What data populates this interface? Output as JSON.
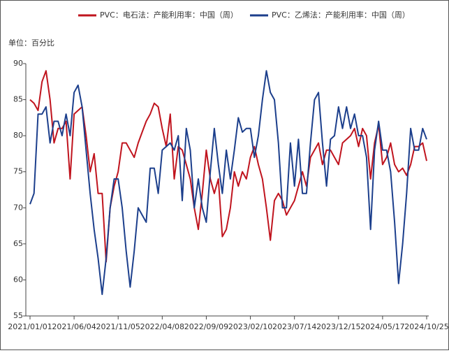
{
  "chart_data": {
    "type": "line",
    "unit_label": "单位：百分比",
    "categories": [
      "2021/01/01",
      null,
      null,
      null,
      null,
      null,
      null,
      null,
      null,
      null,
      null,
      "2021/06/04",
      null,
      null,
      null,
      null,
      null,
      null,
      null,
      null,
      null,
      null,
      "2021/11/05",
      null,
      null,
      null,
      null,
      null,
      null,
      null,
      null,
      null,
      null,
      "2022/04/08",
      null,
      null,
      null,
      null,
      null,
      null,
      null,
      null,
      null,
      null,
      "2022/09/09",
      null,
      null,
      null,
      null,
      null,
      null,
      null,
      null,
      null,
      null,
      "2023/02/10",
      null,
      null,
      null,
      null,
      null,
      null,
      null,
      null,
      null,
      null,
      "2023/07/14",
      null,
      null,
      null,
      null,
      null,
      null,
      null,
      null,
      null,
      null,
      "2023/12/15",
      null,
      null,
      null,
      null,
      null,
      null,
      null,
      null,
      null,
      null,
      "2024/05/17",
      null,
      null,
      null,
      null,
      null,
      null,
      null,
      null,
      null,
      null,
      "2024/10/25"
    ],
    "series": [
      {
        "name": "PVC：电石法：产能利用率：中国（周）",
        "color": "#c0141e",
        "values": [
          85,
          84.5,
          83.5,
          87.5,
          89,
          85,
          79,
          81,
          81,
          82,
          74,
          83,
          83.5,
          84,
          80,
          75,
          77.5,
          72,
          72,
          62.5,
          70,
          73,
          75,
          79,
          79,
          78,
          77,
          79,
          80.5,
          82,
          83,
          84.5,
          84,
          81,
          78.5,
          83,
          74,
          78.5,
          78,
          76,
          74,
          70,
          67,
          72,
          78,
          74,
          72,
          74,
          66,
          67,
          70,
          75,
          73,
          75,
          74,
          77,
          78.5,
          76,
          74,
          70,
          65.5,
          71,
          72,
          71,
          69,
          70,
          71,
          73,
          75,
          73,
          77,
          78,
          79,
          76,
          78,
          78,
          77,
          76,
          79,
          79.5,
          80,
          81,
          78.5,
          81,
          80,
          74,
          79,
          81.5,
          76,
          77,
          79,
          76,
          75,
          75.5,
          74.5,
          76,
          78.5,
          78.5,
          79,
          76.5
        ]
      },
      {
        "name": "PVC：乙烯法：产能利用率：中国（周）",
        "color": "#1c3f8c",
        "values": [
          70.5,
          72,
          83,
          83,
          84,
          79,
          82,
          82,
          80,
          83,
          80,
          86,
          87,
          84,
          78,
          72,
          67,
          63,
          58,
          63,
          70,
          74,
          74,
          70,
          64,
          59,
          64,
          70,
          69,
          68,
          75.5,
          75.5,
          72,
          78,
          78.5,
          79,
          78,
          80,
          71,
          81,
          78,
          70,
          74,
          70,
          68,
          75,
          81,
          76,
          72,
          78,
          74,
          78,
          82.5,
          80.5,
          81,
          81,
          77,
          80,
          85,
          89,
          86,
          85,
          79,
          70,
          70,
          79,
          73,
          79.5,
          72,
          72,
          79,
          85,
          86,
          79,
          73,
          79.5,
          80,
          84,
          81,
          84,
          81,
          83,
          80,
          80,
          77,
          67,
          78,
          82,
          78,
          78,
          75,
          68,
          59.5,
          65,
          72,
          81,
          78,
          78,
          81,
          79.5
        ]
      }
    ],
    "ylim": [
      55,
      90
    ],
    "yticks": [
      55,
      60,
      65,
      70,
      75,
      80,
      85,
      90
    ],
    "grid": false,
    "legend": "top"
  }
}
